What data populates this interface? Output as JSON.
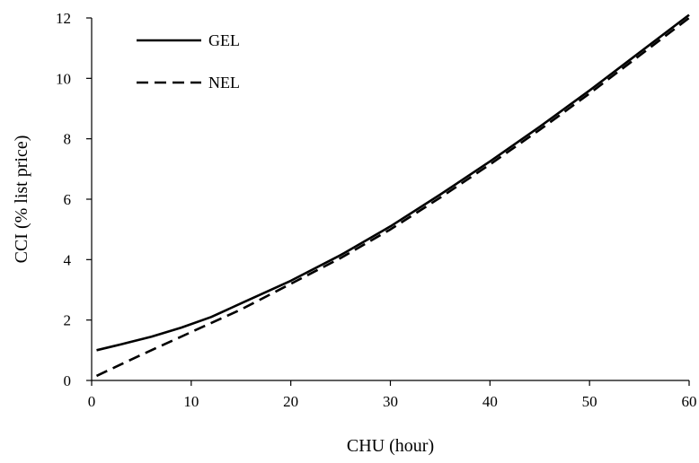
{
  "chart_data": {
    "type": "line",
    "xlabel": "CHU (hour)",
    "ylabel": "CCI (% list price)",
    "xlim": [
      0,
      60
    ],
    "ylim": [
      0,
      12
    ],
    "x_ticks": [
      "0",
      "10",
      "20",
      "30",
      "40",
      "50",
      "60"
    ],
    "y_ticks": [
      "0",
      "2",
      "4",
      "6",
      "8",
      "10",
      "12"
    ],
    "grid": false,
    "legend_position": "top-left",
    "series": [
      {
        "name": "GEL",
        "style": "solid",
        "color": "#000000",
        "x": [
          0.5,
          3,
          6,
          9,
          12,
          15,
          20,
          25,
          30,
          35,
          40,
          45,
          50,
          55,
          60
        ],
        "y": [
          1.0,
          1.2,
          1.45,
          1.75,
          2.1,
          2.55,
          3.3,
          4.15,
          5.1,
          6.15,
          7.25,
          8.4,
          9.6,
          10.85,
          12.1
        ]
      },
      {
        "name": "NEL",
        "style": "dashed",
        "color": "#000000",
        "x": [
          0.5,
          5,
          10,
          15,
          20,
          25,
          30,
          35,
          40,
          45,
          50,
          55,
          60
        ],
        "y": [
          0.15,
          0.85,
          1.6,
          2.35,
          3.2,
          4.05,
          5.0,
          6.05,
          7.15,
          8.3,
          9.5,
          10.75,
          12.0
        ]
      }
    ]
  }
}
